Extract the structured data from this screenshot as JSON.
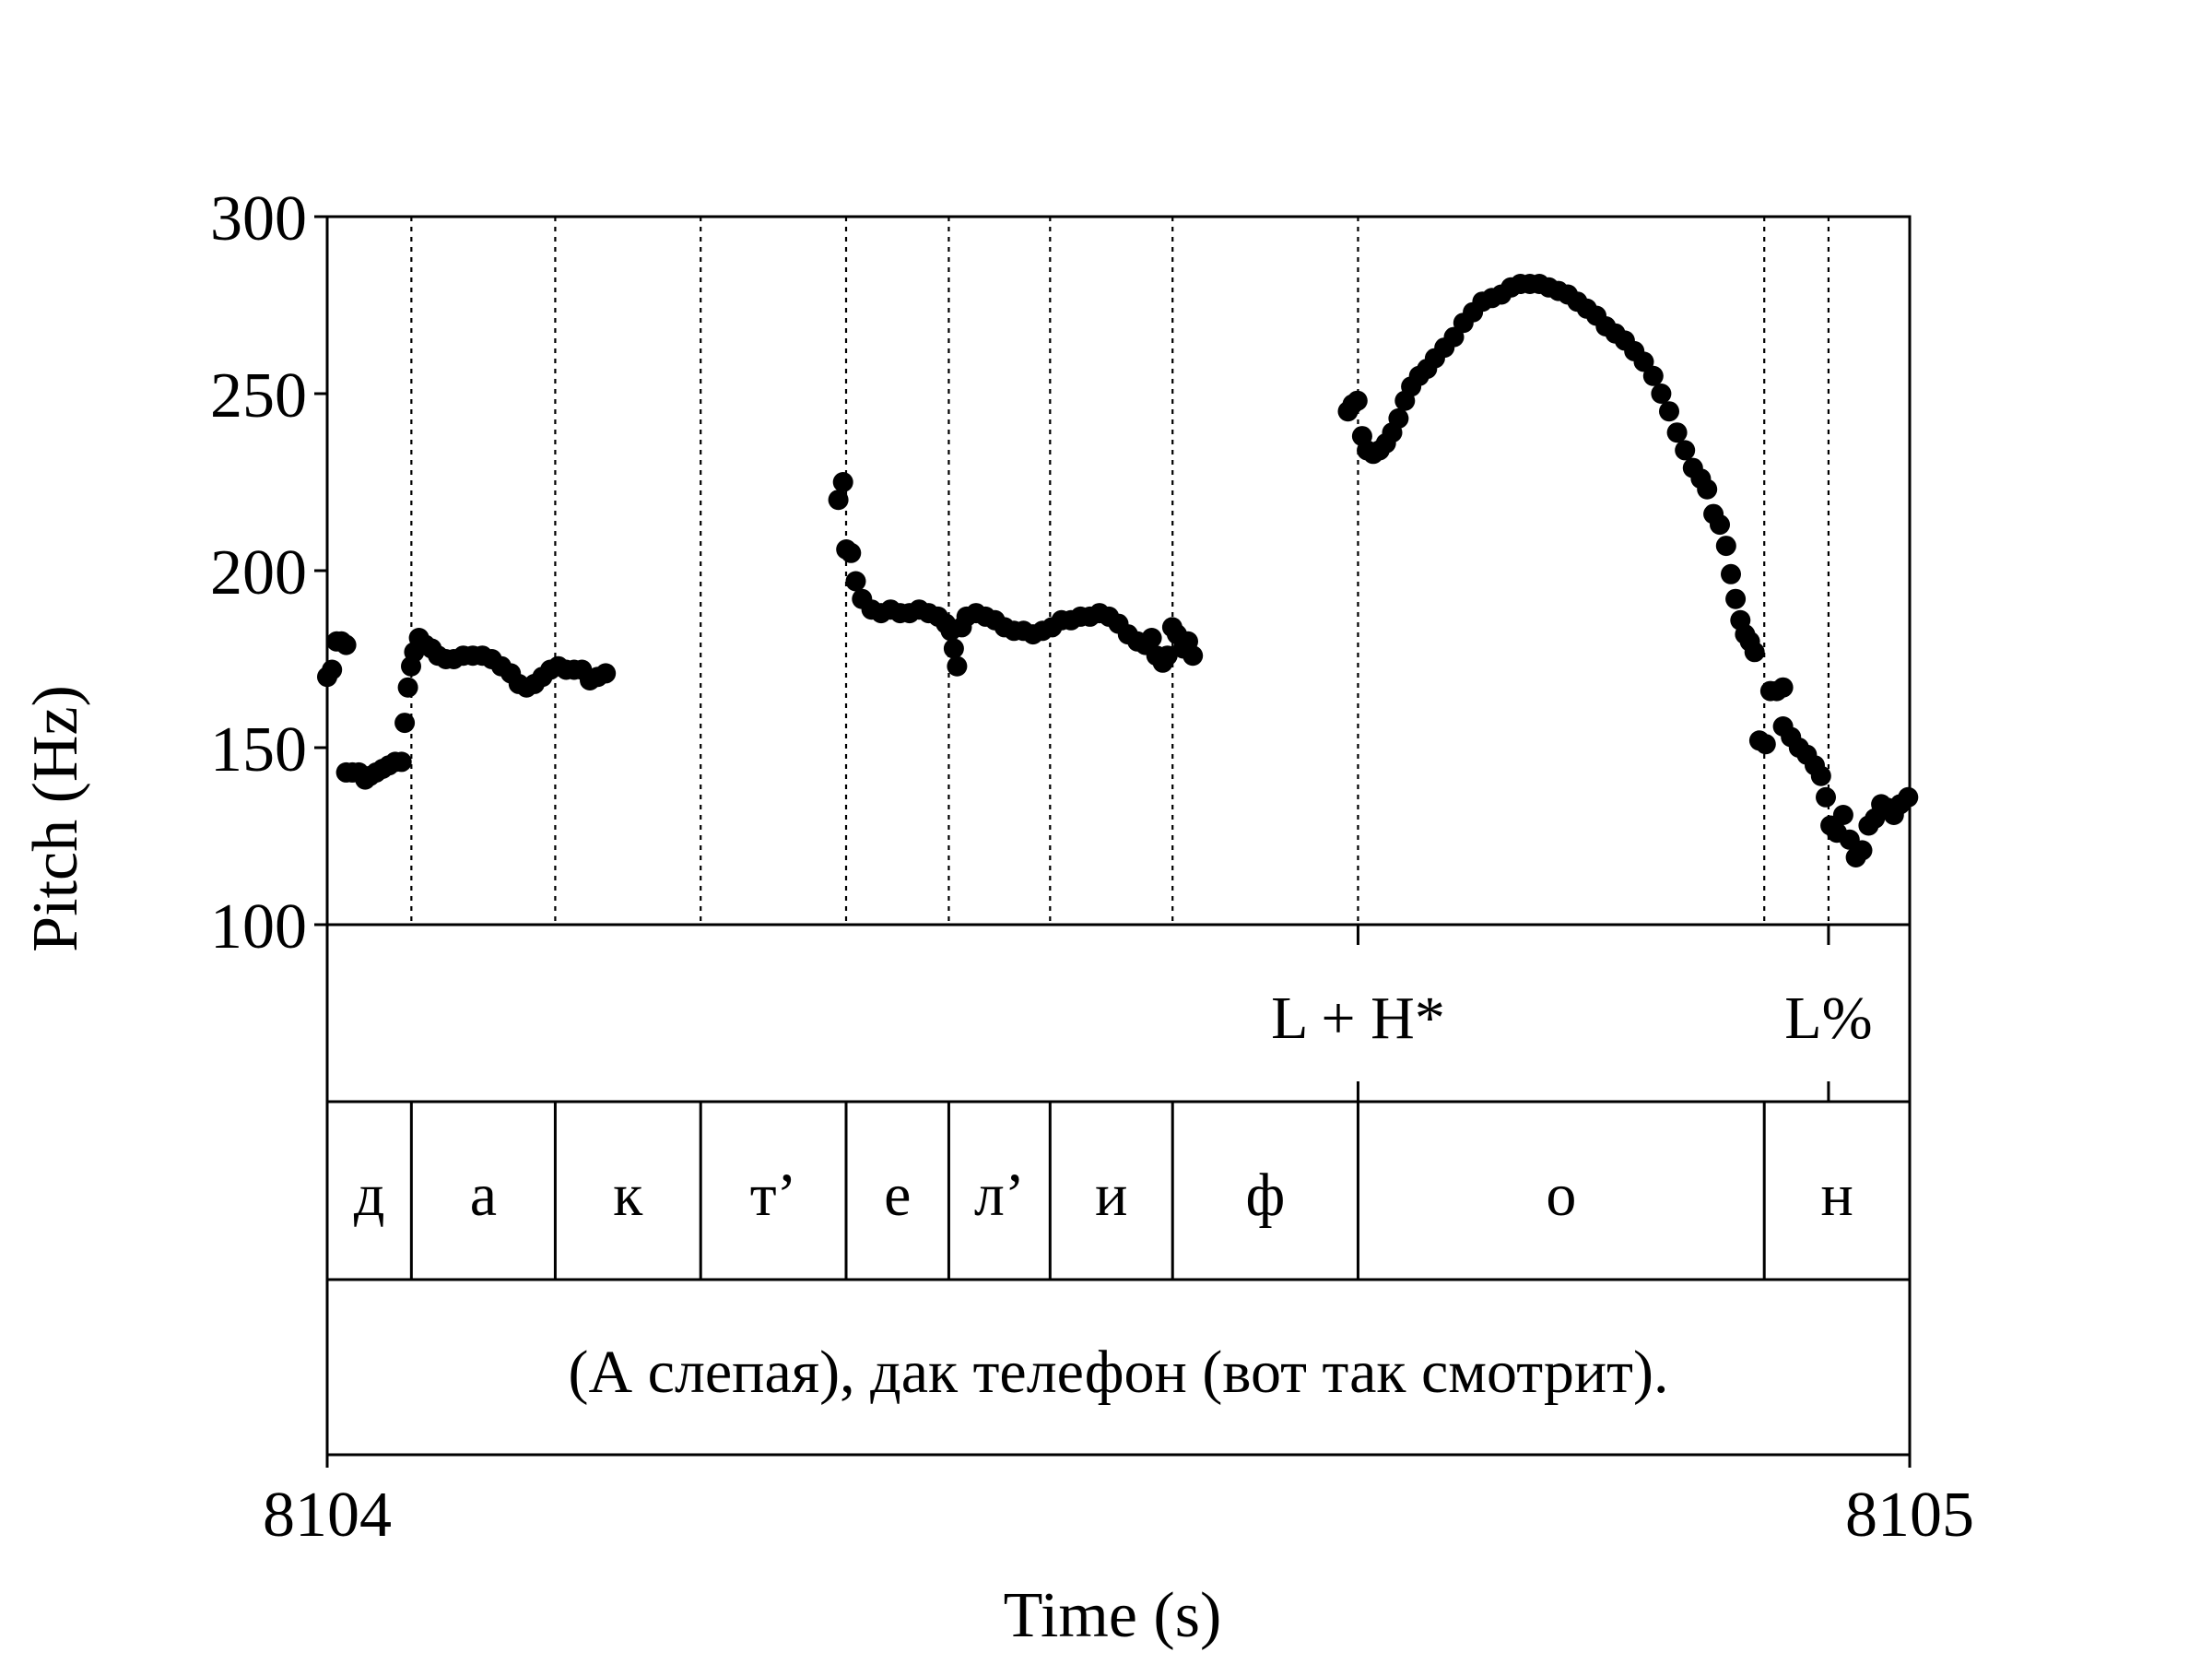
{
  "chart_data": {
    "type": "scatter",
    "title": "",
    "xlabel": "Time (s)",
    "ylabel": "Pitch (Hz)",
    "xlim": [
      8104,
      8105
    ],
    "ylim": [
      100,
      300
    ],
    "y_ticks": [
      "300",
      "250",
      "200",
      "150",
      "100"
    ],
    "x_ticks": [
      "8104",
      "8105"
    ],
    "grid": false,
    "marker_color": "#000000",
    "segment_boundaries": [
      8104.0532,
      8104.1441,
      8104.236,
      8104.3279,
      8104.3928,
      8104.4568,
      8104.5342,
      8104.6514,
      8104.9081,
      8104.9487
    ],
    "tone_tier": {
      "labels": [
        {
          "text": "L + H*",
          "time": 8104.6514
        },
        {
          "text": "L%",
          "time": 8104.9487
        }
      ]
    },
    "segment_tier": {
      "labels": [
        {
          "text": "д",
          "start": 8104.0,
          "end": 8104.0532
        },
        {
          "text": "а",
          "start": 8104.0532,
          "end": 8104.1441
        },
        {
          "text": "к",
          "start": 8104.1441,
          "end": 8104.236
        },
        {
          "text": "т’",
          "start": 8104.236,
          "end": 8104.3279
        },
        {
          "text": "е",
          "start": 8104.3279,
          "end": 8104.3928
        },
        {
          "text": "л’",
          "start": 8104.3928,
          "end": 8104.4568
        },
        {
          "text": "и",
          "start": 8104.4568,
          "end": 8104.5342
        },
        {
          "text": "ф",
          "start": 8104.5342,
          "end": 8104.6514
        },
        {
          "text": "о",
          "start": 8104.6514,
          "end": 8104.9081
        },
        {
          "text": "н",
          "start": 8104.9081,
          "end": 8105.0
        }
      ]
    },
    "sentence_tier": {
      "text": "(А слепая), дак телефон (вот так смотрит)."
    },
    "series": [
      {
        "points": [
          [
            8104.0,
            170
          ],
          [
            8104.003,
            172
          ],
          [
            8104.006,
            180
          ],
          [
            8104.009,
            180
          ],
          [
            8104.012,
            179
          ],
          [
            8104.012,
            143
          ],
          [
            8104.016,
            143
          ],
          [
            8104.02,
            143
          ],
          [
            8104.024,
            141
          ],
          [
            8104.027,
            142
          ],
          [
            8104.031,
            143
          ],
          [
            8104.035,
            144
          ],
          [
            8104.039,
            145
          ],
          [
            8104.043,
            146
          ],
          [
            8104.047,
            146
          ],
          [
            8104.049,
            157
          ],
          [
            8104.051,
            167
          ],
          [
            8104.053,
            173
          ],
          [
            8104.055,
            177
          ],
          [
            8104.058,
            181
          ],
          [
            8104.062,
            179
          ],
          [
            8104.066,
            178
          ],
          [
            8104.07,
            176
          ],
          [
            8104.075,
            175
          ],
          [
            8104.08,
            175
          ],
          [
            8104.086,
            176
          ],
          [
            8104.092,
            176
          ],
          [
            8104.098,
            176
          ],
          [
            8104.104,
            175
          ],
          [
            8104.11,
            173
          ],
          [
            8104.116,
            171
          ],
          [
            8104.121,
            168
          ],
          [
            8104.126,
            167
          ],
          [
            8104.131,
            168
          ],
          [
            8104.136,
            170
          ],
          [
            8104.141,
            172
          ],
          [
            8104.146,
            173
          ],
          [
            8104.151,
            172
          ],
          [
            8104.156,
            172
          ],
          [
            8104.161,
            172
          ],
          [
            8104.166,
            169
          ],
          [
            8104.171,
            170
          ],
          [
            8104.176,
            171
          ],
          [
            8104.323,
            220
          ],
          [
            8104.326,
            225
          ],
          [
            8104.328,
            206
          ],
          [
            8104.331,
            205
          ],
          [
            8104.334,
            197
          ],
          [
            8104.338,
            192
          ],
          [
            8104.344,
            189
          ],
          [
            8104.35,
            188
          ],
          [
            8104.356,
            189
          ],
          [
            8104.362,
            188
          ],
          [
            8104.368,
            188
          ],
          [
            8104.374,
            189
          ],
          [
            8104.38,
            188
          ],
          [
            8104.386,
            187
          ],
          [
            8104.391,
            185
          ],
          [
            8104.394,
            183
          ],
          [
            8104.396,
            178
          ],
          [
            8104.398,
            173
          ],
          [
            8104.401,
            184
          ],
          [
            8104.404,
            187
          ],
          [
            8104.41,
            188
          ],
          [
            8104.416,
            187
          ],
          [
            8104.422,
            186
          ],
          [
            8104.428,
            184
          ],
          [
            8104.434,
            183
          ],
          [
            8104.44,
            183
          ],
          [
            8104.446,
            182
          ],
          [
            8104.452,
            183
          ],
          [
            8104.458,
            184
          ],
          [
            8104.464,
            186
          ],
          [
            8104.47,
            186
          ],
          [
            8104.476,
            187
          ],
          [
            8104.482,
            187
          ],
          [
            8104.488,
            188
          ],
          [
            8104.494,
            187
          ],
          [
            8104.5,
            185
          ],
          [
            8104.506,
            182
          ],
          [
            8104.512,
            180
          ],
          [
            8104.517,
            179
          ],
          [
            8104.521,
            181
          ],
          [
            8104.524,
            176
          ],
          [
            8104.528,
            174
          ],
          [
            8104.531,
            176
          ],
          [
            8104.534,
            184
          ],
          [
            8104.537,
            182
          ],
          [
            8104.541,
            178
          ],
          [
            8104.544,
            180
          ],
          [
            8104.547,
            176
          ],
          [
            8104.645,
            245
          ],
          [
            8104.648,
            247
          ],
          [
            8104.651,
            248
          ],
          [
            8104.654,
            238
          ],
          [
            8104.657,
            234
          ],
          [
            8104.661,
            233
          ],
          [
            8104.665,
            234
          ],
          [
            8104.669,
            236
          ],
          [
            8104.673,
            239
          ],
          [
            8104.677,
            243
          ],
          [
            8104.681,
            248
          ],
          [
            8104.685,
            252
          ],
          [
            8104.69,
            255
          ],
          [
            8104.695,
            257
          ],
          [
            8104.7,
            260
          ],
          [
            8104.706,
            263
          ],
          [
            8104.712,
            266
          ],
          [
            8104.718,
            270
          ],
          [
            8104.724,
            273
          ],
          [
            8104.73,
            276
          ],
          [
            8104.736,
            277
          ],
          [
            8104.742,
            278
          ],
          [
            8104.748,
            280
          ],
          [
            8104.754,
            281
          ],
          [
            8104.76,
            281
          ],
          [
            8104.766,
            281
          ],
          [
            8104.772,
            280
          ],
          [
            8104.778,
            279
          ],
          [
            8104.784,
            278
          ],
          [
            8104.79,
            276
          ],
          [
            8104.796,
            274
          ],
          [
            8104.802,
            272
          ],
          [
            8104.808,
            269
          ],
          [
            8104.814,
            267
          ],
          [
            8104.82,
            265
          ],
          [
            8104.826,
            262
          ],
          [
            8104.832,
            259
          ],
          [
            8104.838,
            255
          ],
          [
            8104.843,
            250
          ],
          [
            8104.848,
            245
          ],
          [
            8104.853,
            239
          ],
          [
            8104.858,
            234
          ],
          [
            8104.863,
            229
          ],
          [
            8104.868,
            226
          ],
          [
            8104.872,
            223
          ],
          [
            8104.876,
            216
          ],
          [
            8104.88,
            213
          ],
          [
            8104.884,
            207
          ],
          [
            8104.887,
            199
          ],
          [
            8104.89,
            192
          ],
          [
            8104.893,
            186
          ],
          [
            8104.896,
            182
          ],
          [
            8104.899,
            180
          ],
          [
            8104.902,
            177
          ],
          [
            8104.905,
            152
          ],
          [
            8104.909,
            151
          ],
          [
            8104.912,
            166
          ],
          [
            8104.916,
            166
          ],
          [
            8104.92,
            167
          ],
          [
            8104.92,
            156
          ],
          [
            8104.925,
            153
          ],
          [
            8104.93,
            150
          ],
          [
            8104.935,
            148
          ],
          [
            8104.94,
            145
          ],
          [
            8104.944,
            142
          ],
          [
            8104.947,
            136
          ],
          [
            8104.95,
            128
          ],
          [
            8104.954,
            126
          ],
          [
            8104.958,
            131
          ],
          [
            8104.962,
            124
          ],
          [
            8104.966,
            119
          ],
          [
            8104.97,
            121
          ],
          [
            8104.974,
            128
          ],
          [
            8104.978,
            130
          ],
          [
            8104.982,
            134
          ],
          [
            8104.986,
            133
          ],
          [
            8104.99,
            131
          ],
          [
            8104.994,
            134
          ],
          [
            8104.999,
            136
          ]
        ]
      }
    ]
  }
}
